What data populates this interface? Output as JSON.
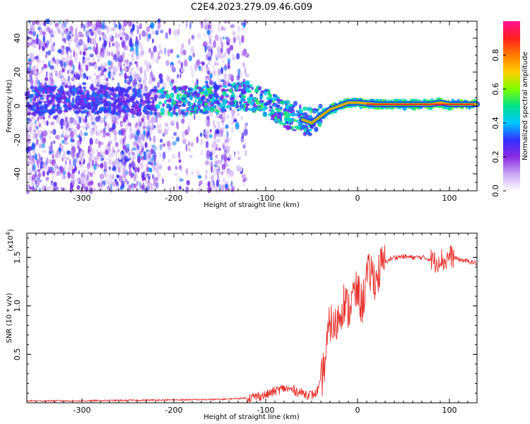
{
  "title": "C2E4.2023.279.09.46.G09",
  "colors": {
    "snr_line": "#e8302a",
    "frame": "#000000"
  },
  "chart_data": [
    {
      "type": "heatmap",
      "name": "spectrogram",
      "xlabel": "Height of straight line (km)",
      "ylabel": "Frequency (Hz)",
      "xlim": [
        -360,
        130
      ],
      "ylim": [
        -50,
        50
      ],
      "xticks": [
        -300,
        -200,
        -100,
        0,
        100
      ],
      "yticks": [
        -40,
        -20,
        0,
        20,
        40
      ],
      "colorbar": {
        "label": "Normalized spectral amplitude",
        "range": [
          0,
          1
        ],
        "ticks": [
          "0.0",
          "0.2",
          "0.4",
          "0.6",
          "0.8"
        ],
        "tick_values": [
          0.0,
          0.2,
          0.4,
          0.6,
          0.8
        ],
        "colormap": [
          "#ffffff",
          "#c9a6f5",
          "#8a2be2",
          "#3030ff",
          "#00c8ff",
          "#00e08a",
          "#7cff00",
          "#ffd000",
          "#ff7a00",
          "#ff1e1e",
          "#ff1493"
        ]
      },
      "ridge": {
        "x": [
          -360,
          -300,
          -250,
          -200,
          -150,
          -120,
          -100,
          -80,
          -70,
          -60,
          -50,
          -40,
          -30,
          -20,
          -10,
          0,
          20,
          60,
          80,
          90,
          100,
          130
        ],
        "frequency": [
          3,
          4,
          3,
          3,
          4,
          6,
          2,
          -4,
          -6,
          -8,
          -10,
          -6,
          -2,
          0,
          2,
          2,
          1,
          1,
          1,
          2,
          1,
          1
        ]
      }
    },
    {
      "type": "line",
      "name": "snr",
      "xlabel": "Height of straight line (km)",
      "ylabel": "SNR (10 * v/v)",
      "y_multiplier": "(x10",
      "y_multiplier_exp": "4",
      "y_multiplier_close": ")",
      "xlim": [
        -360,
        130
      ],
      "ylim": [
        0,
        1.75
      ],
      "xticks": [
        -300,
        -200,
        -100,
        0,
        100
      ],
      "yticks": [
        0.5,
        1.0,
        1.5
      ],
      "ytick_labels": [
        "0.5",
        "1.0",
        "1.5"
      ],
      "series": [
        {
          "name": "SNR",
          "x": [
            -360,
            -300,
            -250,
            -200,
            -150,
            -120,
            -100,
            -90,
            -80,
            -70,
            -60,
            -50,
            -45,
            -40,
            -35,
            -30,
            -25,
            -20,
            -15,
            -10,
            -5,
            0,
            5,
            10,
            15,
            20,
            25,
            30,
            35,
            40,
            50,
            60,
            70,
            80,
            85,
            90,
            95,
            100,
            110,
            120,
            130
          ],
          "values": [
            0.02,
            0.02,
            0.025,
            0.03,
            0.035,
            0.05,
            0.08,
            0.12,
            0.15,
            0.13,
            0.1,
            0.08,
            0.1,
            0.2,
            0.45,
            0.85,
            0.75,
            0.9,
            1.05,
            0.95,
            1.1,
            1.15,
            1.0,
            1.3,
            1.35,
            1.25,
            1.4,
            1.45,
            1.48,
            1.5,
            1.51,
            1.5,
            1.5,
            1.48,
            1.45,
            1.5,
            1.45,
            1.52,
            1.48,
            1.46,
            1.44
          ]
        }
      ]
    }
  ]
}
